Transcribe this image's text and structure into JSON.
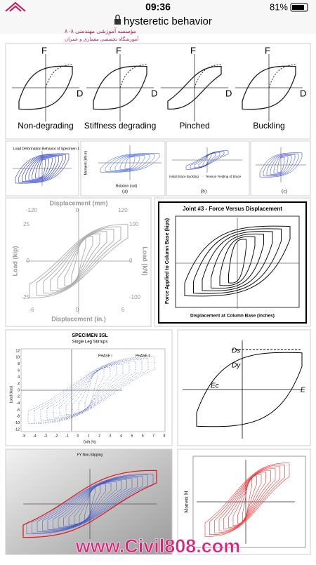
{
  "status_bar": {
    "time": "09:36",
    "battery": "81%"
  },
  "address_bar": {
    "query": "hysteretic behavior"
  },
  "overlay_logo": {
    "lines": [
      "مؤسسه آموزشی مهندسی ۸۰۸",
      "آموزشگاه تخصصی معماری و عمران"
    ]
  },
  "results": [
    {
      "panels": [
        {
          "y": "F",
          "x": "D",
          "caption": "Non-degrading"
        },
        {
          "y": "F",
          "x": "D",
          "caption": "Stiffness degrading"
        },
        {
          "y": "F",
          "x": "D",
          "caption": "Pinched"
        },
        {
          "y": "F",
          "x": "D",
          "caption": "Buckling"
        }
      ]
    },
    {
      "title": "Load Deformation Behavior of Specimen 1",
      "y_label": "Moment (kN-m)",
      "x_label": "Rotation (rad)",
      "labels": [
        "(a)",
        "(b)",
        "(c)"
      ],
      "notes": [
        "Initial Brace Buckling",
        "Tension Yielding of Brace"
      ]
    },
    {
      "top_label": "Displacement (mm)",
      "bottom_label": "Displacement (in.)",
      "left_label": "Load (kip)",
      "right_label": "Load (kN)",
      "top_ticks": [
        "-120",
        "0",
        "120"
      ],
      "left_ticks": [
        "25",
        "0",
        "-25"
      ],
      "right_ticks": [
        "100",
        "0",
        "-100"
      ],
      "bottom_ticks": [
        "-6",
        "0",
        "6"
      ]
    },
    {
      "title": "Joint #3 - Force Versus Displacement",
      "y_label": "Force Applied to Column Base (kips)",
      "x_label": "Displacement at Column Base (inches)"
    },
    {
      "title": "SPECIMEN 3SL",
      "subtitle": "Single Leg Stirrups",
      "phases": [
        "PHASE I",
        "PHASE II"
      ],
      "y_label": "Load (kips)",
      "x_label": "Drift (%)",
      "x_ticks": [
        "-5",
        "-4",
        "-3",
        "-2",
        "-1",
        "0",
        "1",
        "2",
        "3",
        "4",
        "5",
        "6",
        "7",
        "8"
      ],
      "y_ticks": [
        "12",
        "10",
        "8",
        "6",
        "4",
        "2",
        "0",
        "-2",
        "-4",
        "-6",
        "-8",
        "-10",
        "-12"
      ]
    },
    {
      "labels": [
        "Ds",
        "Dy",
        "Ec",
        "E"
      ]
    },
    {
      "title": "FY Non-Slipping"
    },
    {
      "y_label": "Moment M"
    }
  ],
  "footer_watermark": "www.Civil808.com"
}
